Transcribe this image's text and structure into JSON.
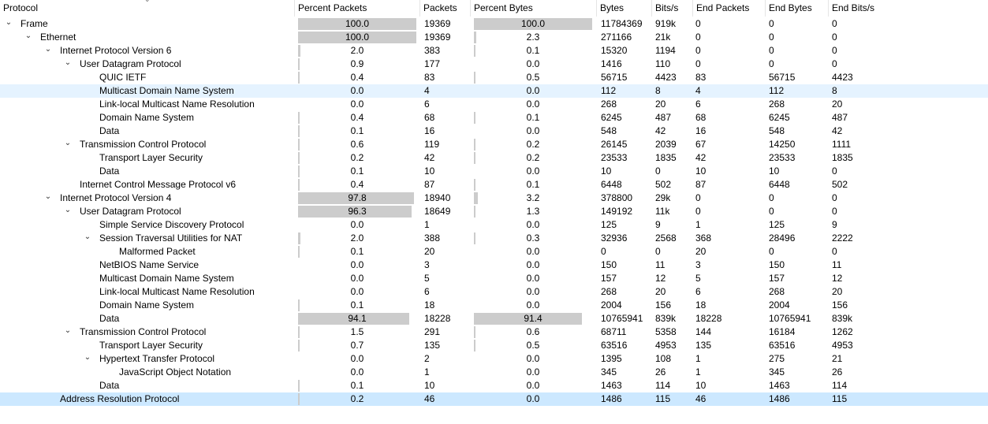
{
  "columns": [
    "Protocol",
    "Percent Packets",
    "Packets",
    "Percent Bytes",
    "Bytes",
    "Bits/s",
    "End Packets",
    "End Bytes",
    "End Bits/s"
  ],
  "rows": [
    {
      "depth": 0,
      "arrow": "down",
      "name": "Frame",
      "pp": "100.0",
      "pp_v": 100.0,
      "pk": "19369",
      "pb": "100.0",
      "pb_v": 100.0,
      "by": "11784369",
      "bs": "919k",
      "ep": "0",
      "eb": "0",
      "ebs": "0"
    },
    {
      "depth": 1,
      "arrow": "down",
      "name": "Ethernet",
      "pp": "100.0",
      "pp_v": 100.0,
      "pk": "19369",
      "pb": "2.3",
      "pb_v": 2.3,
      "by": "271166",
      "bs": "21k",
      "ep": "0",
      "eb": "0",
      "ebs": "0"
    },
    {
      "depth": 2,
      "arrow": "down",
      "name": "Internet Protocol Version 6",
      "pp": "2.0",
      "pp_v": 2.0,
      "pk": "383",
      "pb": "0.1",
      "pb_v": 0.1,
      "by": "15320",
      "bs": "1194",
      "ep": "0",
      "eb": "0",
      "ebs": "0"
    },
    {
      "depth": 3,
      "arrow": "down",
      "name": "User Datagram Protocol",
      "pp": "0.9",
      "pp_v": 0.9,
      "pk": "177",
      "pb": "0.0",
      "pb_v": 0.0,
      "by": "1416",
      "bs": "110",
      "ep": "0",
      "eb": "0",
      "ebs": "0"
    },
    {
      "depth": 4,
      "arrow": "none",
      "name": "QUIC IETF",
      "pp": "0.4",
      "pp_v": 0.4,
      "pk": "83",
      "pb": "0.5",
      "pb_v": 0.5,
      "by": "56715",
      "bs": "4423",
      "ep": "83",
      "eb": "56715",
      "ebs": "4423"
    },
    {
      "depth": 4,
      "arrow": "none",
      "name": "Multicast Domain Name System",
      "pp": "0.0",
      "pp_v": 0.0,
      "pk": "4",
      "pb": "0.0",
      "pb_v": 0.0,
      "by": "112",
      "bs": "8",
      "ep": "4",
      "eb": "112",
      "ebs": "8",
      "state": "hl"
    },
    {
      "depth": 4,
      "arrow": "none",
      "name": "Link-local Multicast Name Resolution",
      "pp": "0.0",
      "pp_v": 0.0,
      "pk": "6",
      "pb": "0.0",
      "pb_v": 0.0,
      "by": "268",
      "bs": "20",
      "ep": "6",
      "eb": "268",
      "ebs": "20"
    },
    {
      "depth": 4,
      "arrow": "none",
      "name": "Domain Name System",
      "pp": "0.4",
      "pp_v": 0.4,
      "pk": "68",
      "pb": "0.1",
      "pb_v": 0.1,
      "by": "6245",
      "bs": "487",
      "ep": "68",
      "eb": "6245",
      "ebs": "487"
    },
    {
      "depth": 4,
      "arrow": "none",
      "name": "Data",
      "pp": "0.1",
      "pp_v": 0.1,
      "pk": "16",
      "pb": "0.0",
      "pb_v": 0.0,
      "by": "548",
      "bs": "42",
      "ep": "16",
      "eb": "548",
      "ebs": "42"
    },
    {
      "depth": 3,
      "arrow": "down",
      "name": "Transmission Control Protocol",
      "pp": "0.6",
      "pp_v": 0.6,
      "pk": "119",
      "pb": "0.2",
      "pb_v": 0.2,
      "by": "26145",
      "bs": "2039",
      "ep": "67",
      "eb": "14250",
      "ebs": "1111"
    },
    {
      "depth": 4,
      "arrow": "none",
      "name": "Transport Layer Security",
      "pp": "0.2",
      "pp_v": 0.2,
      "pk": "42",
      "pb": "0.2",
      "pb_v": 0.2,
      "by": "23533",
      "bs": "1835",
      "ep": "42",
      "eb": "23533",
      "ebs": "1835"
    },
    {
      "depth": 4,
      "arrow": "none",
      "name": "Data",
      "pp": "0.1",
      "pp_v": 0.1,
      "pk": "10",
      "pb": "0.0",
      "pb_v": 0.0,
      "by": "10",
      "bs": "0",
      "ep": "10",
      "eb": "10",
      "ebs": "0"
    },
    {
      "depth": 3,
      "arrow": "none",
      "name": "Internet Control Message Protocol v6",
      "pp": "0.4",
      "pp_v": 0.4,
      "pk": "87",
      "pb": "0.1",
      "pb_v": 0.1,
      "by": "6448",
      "bs": "502",
      "ep": "87",
      "eb": "6448",
      "ebs": "502"
    },
    {
      "depth": 2,
      "arrow": "down",
      "name": "Internet Protocol Version 4",
      "pp": "97.8",
      "pp_v": 97.8,
      "pk": "18940",
      "pb": "3.2",
      "pb_v": 3.2,
      "by": "378800",
      "bs": "29k",
      "ep": "0",
      "eb": "0",
      "ebs": "0"
    },
    {
      "depth": 3,
      "arrow": "down",
      "name": "User Datagram Protocol",
      "pp": "96.3",
      "pp_v": 96.3,
      "pk": "18649",
      "pb": "1.3",
      "pb_v": 1.3,
      "by": "149192",
      "bs": "11k",
      "ep": "0",
      "eb": "0",
      "ebs": "0"
    },
    {
      "depth": 4,
      "arrow": "none",
      "name": "Simple Service Discovery Protocol",
      "pp": "0.0",
      "pp_v": 0.0,
      "pk": "1",
      "pb": "0.0",
      "pb_v": 0.0,
      "by": "125",
      "bs": "9",
      "ep": "1",
      "eb": "125",
      "ebs": "9"
    },
    {
      "depth": 4,
      "arrow": "down",
      "name": "Session Traversal Utilities for NAT",
      "pp": "2.0",
      "pp_v": 2.0,
      "pk": "388",
      "pb": "0.3",
      "pb_v": 0.3,
      "by": "32936",
      "bs": "2568",
      "ep": "368",
      "eb": "28496",
      "ebs": "2222"
    },
    {
      "depth": 5,
      "arrow": "none",
      "name": "Malformed Packet",
      "pp": "0.1",
      "pp_v": 0.1,
      "pk": "20",
      "pb": "0.0",
      "pb_v": 0.0,
      "by": "0",
      "bs": "0",
      "ep": "20",
      "eb": "0",
      "ebs": "0"
    },
    {
      "depth": 4,
      "arrow": "none",
      "name": "NetBIOS Name Service",
      "pp": "0.0",
      "pp_v": 0.0,
      "pk": "3",
      "pb": "0.0",
      "pb_v": 0.0,
      "by": "150",
      "bs": "11",
      "ep": "3",
      "eb": "150",
      "ebs": "11"
    },
    {
      "depth": 4,
      "arrow": "none",
      "name": "Multicast Domain Name System",
      "pp": "0.0",
      "pp_v": 0.0,
      "pk": "5",
      "pb": "0.0",
      "pb_v": 0.0,
      "by": "157",
      "bs": "12",
      "ep": "5",
      "eb": "157",
      "ebs": "12"
    },
    {
      "depth": 4,
      "arrow": "none",
      "name": "Link-local Multicast Name Resolution",
      "pp": "0.0",
      "pp_v": 0.0,
      "pk": "6",
      "pb": "0.0",
      "pb_v": 0.0,
      "by": "268",
      "bs": "20",
      "ep": "6",
      "eb": "268",
      "ebs": "20"
    },
    {
      "depth": 4,
      "arrow": "none",
      "name": "Domain Name System",
      "pp": "0.1",
      "pp_v": 0.1,
      "pk": "18",
      "pb": "0.0",
      "pb_v": 0.0,
      "by": "2004",
      "bs": "156",
      "ep": "18",
      "eb": "2004",
      "ebs": "156"
    },
    {
      "depth": 4,
      "arrow": "none",
      "name": "Data",
      "pp": "94.1",
      "pp_v": 94.1,
      "pk": "18228",
      "pb": "91.4",
      "pb_v": 91.4,
      "by": "10765941",
      "bs": "839k",
      "ep": "18228",
      "eb": "10765941",
      "ebs": "839k"
    },
    {
      "depth": 3,
      "arrow": "down",
      "name": "Transmission Control Protocol",
      "pp": "1.5",
      "pp_v": 1.5,
      "pk": "291",
      "pb": "0.6",
      "pb_v": 0.6,
      "by": "68711",
      "bs": "5358",
      "ep": "144",
      "eb": "16184",
      "ebs": "1262"
    },
    {
      "depth": 4,
      "arrow": "none",
      "name": "Transport Layer Security",
      "pp": "0.7",
      "pp_v": 0.7,
      "pk": "135",
      "pb": "0.5",
      "pb_v": 0.5,
      "by": "63516",
      "bs": "4953",
      "ep": "135",
      "eb": "63516",
      "ebs": "4953"
    },
    {
      "depth": 4,
      "arrow": "down",
      "name": "Hypertext Transfer Protocol",
      "pp": "0.0",
      "pp_v": 0.0,
      "pk": "2",
      "pb": "0.0",
      "pb_v": 0.0,
      "by": "1395",
      "bs": "108",
      "ep": "1",
      "eb": "275",
      "ebs": "21"
    },
    {
      "depth": 5,
      "arrow": "none",
      "name": "JavaScript Object Notation",
      "pp": "0.0",
      "pp_v": 0.0,
      "pk": "1",
      "pb": "0.0",
      "pb_v": 0.0,
      "by": "345",
      "bs": "26",
      "ep": "1",
      "eb": "345",
      "ebs": "26"
    },
    {
      "depth": 4,
      "arrow": "none",
      "name": "Data",
      "pp": "0.1",
      "pp_v": 0.1,
      "pk": "10",
      "pb": "0.0",
      "pb_v": 0.0,
      "by": "1463",
      "bs": "114",
      "ep": "10",
      "eb": "1463",
      "ebs": "114"
    },
    {
      "depth": 2,
      "arrow": "none",
      "name": "Address Resolution Protocol",
      "pp": "0.2",
      "pp_v": 0.2,
      "pk": "46",
      "pb": "0.0",
      "pb_v": 0.0,
      "by": "1486",
      "bs": "115",
      "ep": "46",
      "eb": "1486",
      "ebs": "115",
      "state": "sel"
    }
  ],
  "colors": {
    "bar": "#cccccc",
    "selected": "#cce8ff",
    "hover": "#e5f3ff"
  }
}
